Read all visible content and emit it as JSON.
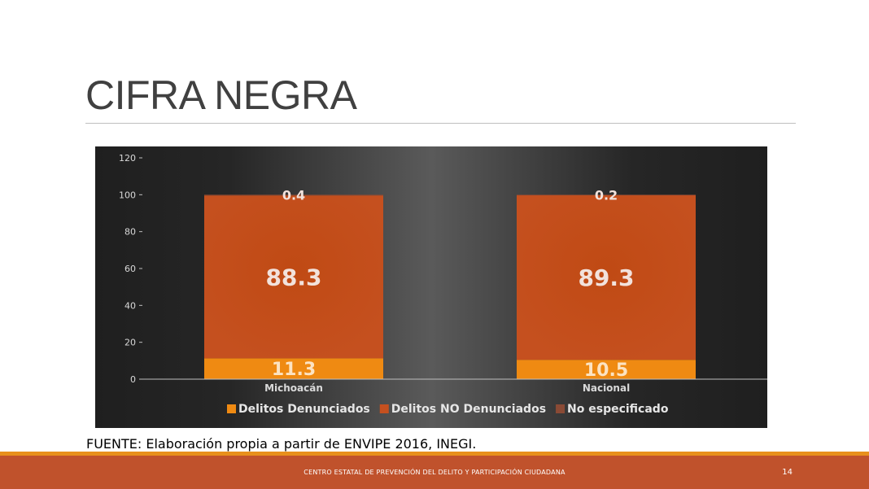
{
  "slide": {
    "title": "CIFRA NEGRA",
    "source": "FUENTE: Elaboración propia a partir de ENVIPE 2016, INEGI.",
    "footer_text": "CENTRO ESTATAL DE PREVENCIÓN DEL DELITO Y PARTICIPACIÓN CIUDADANA",
    "page_number": "14"
  },
  "colors": {
    "denunciados": "#ef8a12",
    "no_denunciados": "#c5501f",
    "no_especificado": "#8a4a35",
    "footer": "#c0522c",
    "footer_line": "#e8901c"
  },
  "chart_data": {
    "type": "bar",
    "stacked": true,
    "categories": [
      "Michoacán",
      "Nacional"
    ],
    "series": [
      {
        "name": "Delitos Denunciados",
        "values": [
          11.3,
          10.5
        ]
      },
      {
        "name": "Delitos NO Denunciados",
        "values": [
          88.3,
          89.3
        ]
      },
      {
        "name": "No especificado",
        "values": [
          0.4,
          0.2
        ]
      }
    ],
    "ylim": [
      0,
      120
    ],
    "yticks": [
      "0",
      "20",
      "40",
      "60",
      "80",
      "100",
      "120"
    ],
    "legend": "bottom",
    "grid": false
  }
}
